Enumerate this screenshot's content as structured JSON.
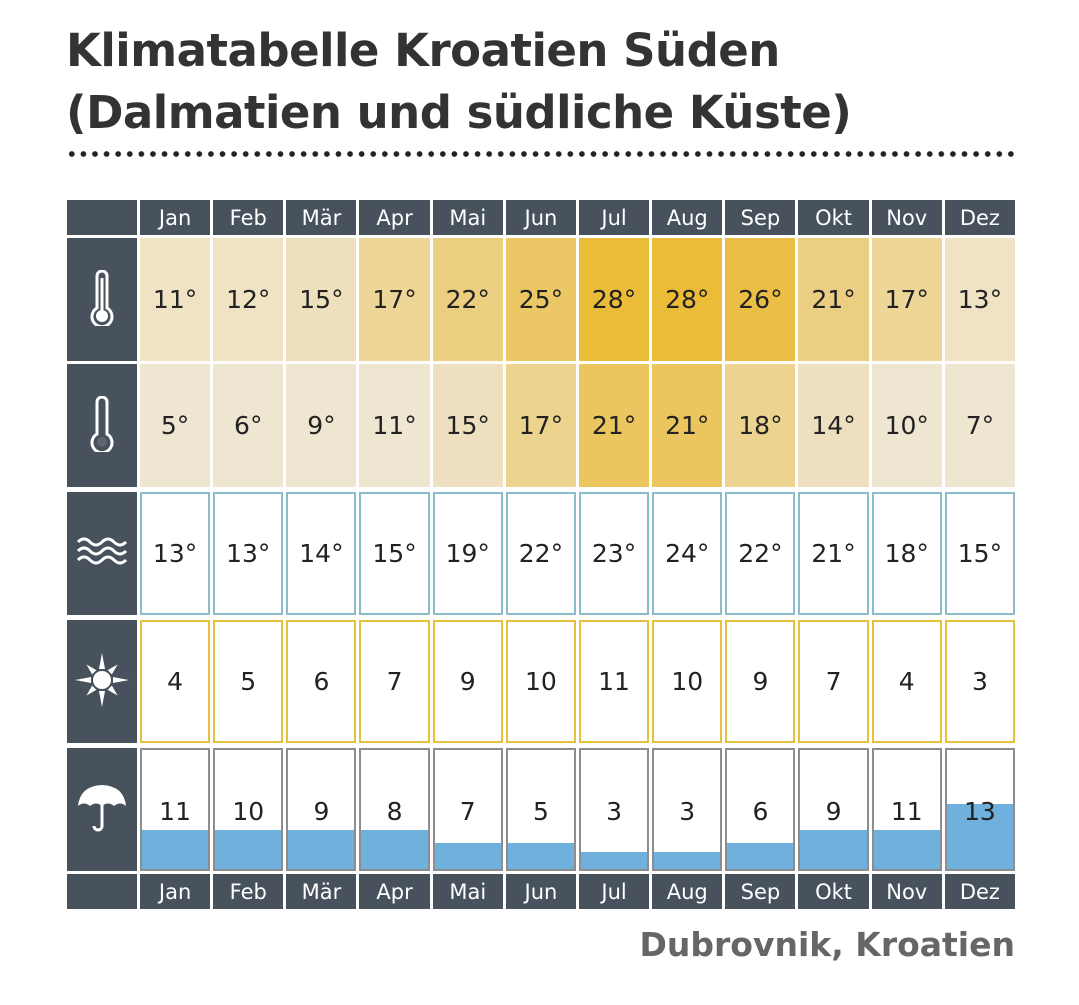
{
  "title_line1": "Klimatabelle Kroatien Süden",
  "title_line2": "(Dalmatien und südliche Küste)",
  "source": "Dubrovnik, Kroatien",
  "chart_data": {
    "type": "table",
    "months": [
      "Jan",
      "Feb",
      "Mär",
      "Apr",
      "Mai",
      "Jun",
      "Jul",
      "Aug",
      "Sep",
      "Okt",
      "Nov",
      "Dez"
    ],
    "rows": [
      {
        "name": "max_temp",
        "icon": "thermometer-full-icon",
        "unit": "°",
        "values": [
          11,
          12,
          15,
          17,
          22,
          25,
          28,
          28,
          26,
          21,
          17,
          13
        ]
      },
      {
        "name": "min_temp",
        "icon": "thermometer-empty-icon",
        "unit": "°",
        "values": [
          5,
          6,
          9,
          11,
          15,
          17,
          21,
          21,
          18,
          14,
          10,
          7
        ]
      },
      {
        "name": "water_temp",
        "icon": "waves-icon",
        "unit": "°",
        "values": [
          13,
          13,
          14,
          15,
          19,
          22,
          23,
          24,
          22,
          21,
          18,
          15
        ]
      },
      {
        "name": "sun_hours",
        "icon": "sun-icon",
        "unit": "",
        "values": [
          4,
          5,
          6,
          7,
          9,
          10,
          11,
          10,
          9,
          7,
          4,
          3
        ]
      },
      {
        "name": "rain_days",
        "icon": "umbrella-icon",
        "unit": "",
        "values": [
          11,
          10,
          9,
          8,
          7,
          5,
          3,
          3,
          6,
          9,
          11,
          13
        ]
      }
    ],
    "colors": {
      "header": "#47525d",
      "water_border": "#8bbccc",
      "sun_border": "#e5c23a",
      "rain_border": "#8d8d8d",
      "rain_fill": "#6fb0dd"
    }
  }
}
